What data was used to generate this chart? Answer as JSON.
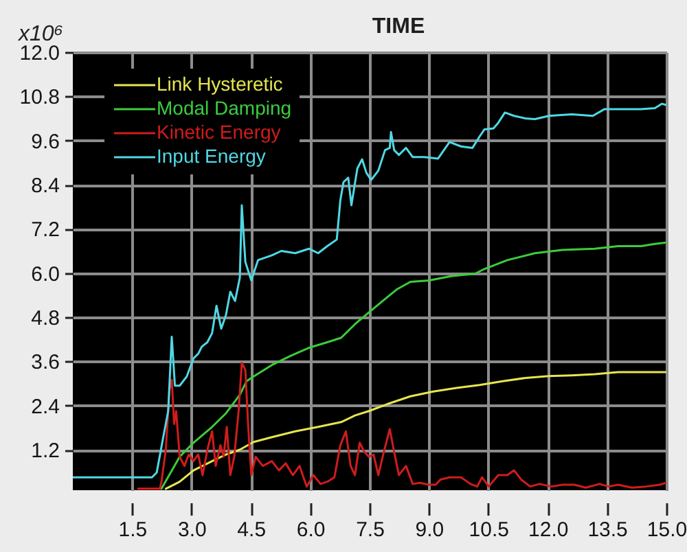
{
  "chart_data": {
    "type": "line",
    "title": "TIME",
    "ylabel": "x10⁶",
    "xlim": [
      0,
      15
    ],
    "ylim": [
      0.1,
      12
    ],
    "xticks": [
      1.5,
      {
        "value": 3,
        "label": "3.0"
      },
      4.5,
      {
        "value": 6,
        "label": "6.0"
      },
      7.5,
      {
        "value": 9,
        "label": "9.0"
      },
      10.5,
      {
        "value": 12,
        "label": "12.0"
      },
      13.5,
      {
        "value": 15,
        "label": "15.0"
      }
    ],
    "yticks": [
      1.2,
      2.4,
      3.6,
      4.8,
      {
        "value": 6,
        "label": "6.0"
      },
      7.2,
      8.4,
      9.6,
      10.8,
      {
        "value": 12,
        "label": "12.0"
      }
    ],
    "grid": true,
    "legend": "top left",
    "series": [
      {
        "name": "Link Hysteretic",
        "color": "#e6e650",
        "x": [
          2.35,
          2.7,
          3.05,
          3.52,
          3.87,
          4.22,
          4.57,
          5.03,
          5.62,
          6.2,
          6.78,
          7.13,
          7.48,
          7.95,
          8.53,
          9.11,
          9.7,
          10.28,
          10.86,
          11.44,
          12.03,
          12.61,
          13.19,
          13.78,
          15.0
        ],
        "values": [
          0.14,
          0.33,
          0.64,
          0.89,
          1.07,
          1.2,
          1.41,
          1.54,
          1.7,
          1.82,
          1.95,
          2.13,
          2.25,
          2.44,
          2.65,
          2.78,
          2.88,
          2.96,
          3.06,
          3.15,
          3.2,
          3.22,
          3.25,
          3.31,
          3.31
        ]
      },
      {
        "name": "Modal Damping",
        "color": "#3ccc3c",
        "x": [
          2.24,
          2.7,
          3.05,
          3.52,
          3.87,
          4.22,
          4.39,
          4.57,
          5.03,
          5.5,
          5.97,
          6.43,
          6.78,
          7.13,
          7.48,
          7.83,
          8.18,
          8.53,
          9.0,
          9.58,
          10.16,
          10.4,
          10.98,
          11.68,
          12.38,
          13.19,
          13.78,
          14.36,
          14.71,
          15.0
        ],
        "values": [
          0.14,
          1.01,
          1.39,
          1.82,
          2.19,
          2.69,
          3.06,
          3.19,
          3.5,
          3.75,
          3.97,
          4.12,
          4.24,
          4.61,
          4.93,
          5.24,
          5.55,
          5.76,
          5.8,
          5.92,
          5.98,
          6.11,
          6.35,
          6.54,
          6.63,
          6.66,
          6.73,
          6.73,
          6.79,
          6.83
        ]
      },
      {
        "name": "Kinetic Energy",
        "color": "#d01c1c",
        "x": [
          1.65,
          2.2,
          2.24,
          2.35,
          2.44,
          2.5,
          2.56,
          2.61,
          2.7,
          2.82,
          2.93,
          3.05,
          3.17,
          3.28,
          3.4,
          3.52,
          3.61,
          3.73,
          3.81,
          3.89,
          3.98,
          4.08,
          4.19,
          4.27,
          4.36,
          4.43,
          4.51,
          4.62,
          4.8,
          5.03,
          5.21,
          5.38,
          5.56,
          5.73,
          5.91,
          6.08,
          6.26,
          6.43,
          6.61,
          6.76,
          6.9,
          7.02,
          7.13,
          7.25,
          7.37,
          7.48,
          7.6,
          7.72,
          7.86,
          8.01,
          8.12,
          8.24,
          8.42,
          8.59,
          8.77,
          9.0,
          9.17,
          9.29,
          9.52,
          9.81,
          10.05,
          10.22,
          10.34,
          10.51,
          10.75,
          10.98,
          11.15,
          11.33,
          11.56,
          11.79,
          12.09,
          12.38,
          12.67,
          12.96,
          13.31,
          13.54,
          13.78,
          14.13,
          14.48,
          14.83,
          15.0
        ],
        "values": [
          0.14,
          0.14,
          0.33,
          1.2,
          2.81,
          3.1,
          1.9,
          2.25,
          1.01,
          0.76,
          1.07,
          0.89,
          1.07,
          0.51,
          1.2,
          1.7,
          0.76,
          1.32,
          1.01,
          1.82,
          0.51,
          1.01,
          2.25,
          3.56,
          3.37,
          1.88,
          0.51,
          1.01,
          0.76,
          0.89,
          0.64,
          0.83,
          0.51,
          0.76,
          0.2,
          0.51,
          0.27,
          0.33,
          0.45,
          1.32,
          1.7,
          0.76,
          0.51,
          1.39,
          1.14,
          1.01,
          1.07,
          0.51,
          1.14,
          1.76,
          1.14,
          0.51,
          0.76,
          0.27,
          0.3,
          0.25,
          0.25,
          0.39,
          0.45,
          0.45,
          0.27,
          0.2,
          0.45,
          0.2,
          0.51,
          0.51,
          0.64,
          0.39,
          0.2,
          0.27,
          0.2,
          0.25,
          0.25,
          0.17,
          0.27,
          0.2,
          0.25,
          0.17,
          0.2,
          0.25,
          0.3
        ]
      },
      {
        "name": "Input Energy",
        "color": "#50d8e4",
        "x": [
          0,
          2.0,
          2.12,
          2.29,
          2.41,
          2.5,
          2.58,
          2.7,
          2.88,
          3.05,
          3.17,
          3.26,
          3.4,
          3.52,
          3.63,
          3.75,
          3.87,
          3.98,
          4.1,
          4.22,
          4.27,
          4.36,
          4.51,
          4.68,
          5.03,
          5.27,
          5.62,
          5.97,
          6.2,
          6.43,
          6.67,
          6.76,
          6.84,
          6.96,
          7.04,
          7.19,
          7.31,
          7.42,
          7.54,
          7.72,
          7.89,
          8.01,
          8.04,
          8.12,
          8.24,
          8.42,
          8.59,
          8.88,
          9.23,
          9.52,
          9.81,
          10.1,
          10.28,
          10.4,
          10.63,
          10.75,
          10.92,
          11.15,
          11.44,
          11.68,
          12.03,
          12.61,
          13.14,
          13.43,
          13.78,
          14.36,
          14.71,
          14.89,
          15.0
        ],
        "values": [
          0.45,
          0.45,
          0.58,
          1.57,
          2.25,
          4.27,
          2.94,
          2.94,
          3.19,
          3.68,
          3.81,
          4.0,
          4.12,
          4.37,
          5.11,
          4.49,
          4.86,
          5.49,
          5.24,
          5.87,
          7.84,
          6.3,
          5.8,
          6.35,
          6.48,
          6.6,
          6.54,
          6.66,
          6.54,
          6.73,
          6.91,
          7.97,
          8.47,
          8.59,
          7.84,
          8.84,
          9.09,
          8.72,
          8.53,
          8.78,
          9.34,
          9.4,
          9.83,
          9.34,
          9.21,
          9.4,
          9.15,
          9.15,
          9.11,
          9.56,
          9.44,
          9.4,
          9.71,
          9.9,
          9.93,
          10.08,
          10.36,
          10.27,
          10.2,
          10.18,
          10.27,
          10.31,
          10.27,
          10.45,
          10.45,
          10.45,
          10.48,
          10.6,
          10.56
        ]
      }
    ]
  }
}
